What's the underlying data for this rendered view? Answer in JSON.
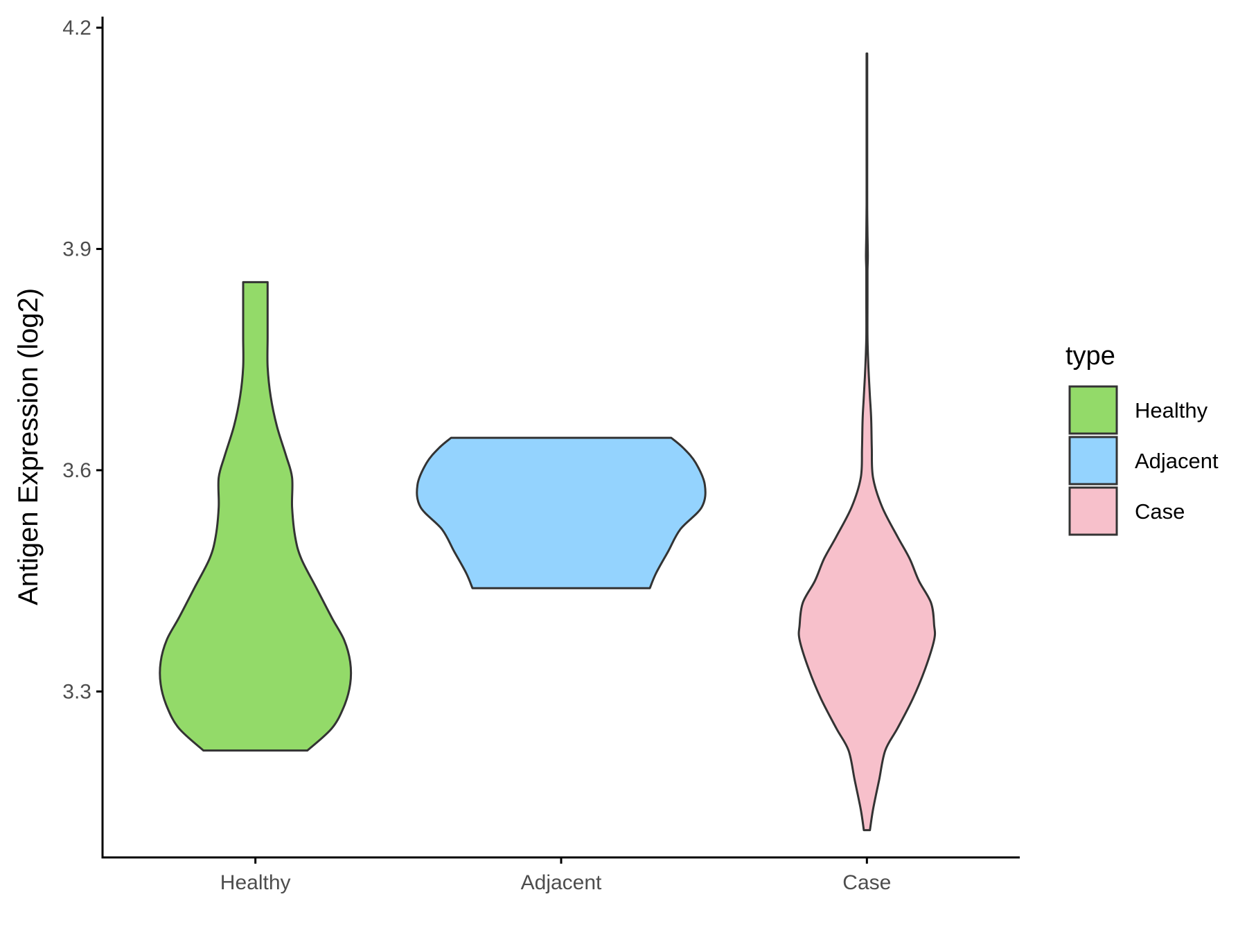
{
  "chart_data": {
    "type": "violin",
    "title": "",
    "xlabel": "",
    "ylabel": "Antigen Expression (log2)",
    "categories": [
      "Healthy",
      "Adjacent",
      "Case"
    ],
    "ylim": [
      3.075,
      4.215
    ],
    "yticks": [
      3.3,
      3.6,
      3.9,
      4.2
    ],
    "ytick_labels": [
      "3.3",
      "3.6",
      "3.9",
      "4.2"
    ],
    "grid": false,
    "legend": {
      "title": "type",
      "position": "right",
      "items": [
        {
          "label": "Healthy",
          "color": "#93DA69"
        },
        {
          "label": "Adjacent",
          "color": "#94D3FE"
        },
        {
          "label": "Case",
          "color": "#F7C0CB"
        }
      ]
    },
    "outline_color": "#333333",
    "series": [
      {
        "name": "Healthy",
        "color": "#93DA69",
        "range": [
          3.22,
          3.855
        ],
        "density": [
          [
            3.22,
            0.17
          ],
          [
            3.25,
            0.25
          ],
          [
            3.28,
            0.29
          ],
          [
            3.31,
            0.31
          ],
          [
            3.34,
            0.31
          ],
          [
            3.37,
            0.29
          ],
          [
            3.4,
            0.25
          ],
          [
            3.44,
            0.2
          ],
          [
            3.48,
            0.15
          ],
          [
            3.51,
            0.13
          ],
          [
            3.55,
            0.12
          ],
          [
            3.59,
            0.12
          ],
          [
            3.62,
            0.1
          ],
          [
            3.66,
            0.07
          ],
          [
            3.7,
            0.05
          ],
          [
            3.74,
            0.04
          ],
          [
            3.78,
            0.04
          ],
          [
            3.82,
            0.04
          ],
          [
            3.855,
            0.04
          ]
        ]
      },
      {
        "name": "Adjacent",
        "color": "#94D3FE",
        "range": [
          3.44,
          3.644
        ],
        "density": [
          [
            3.44,
            0.29
          ],
          [
            3.46,
            0.31
          ],
          [
            3.49,
            0.35
          ],
          [
            3.52,
            0.39
          ],
          [
            3.55,
            0.46
          ],
          [
            3.58,
            0.47
          ],
          [
            3.61,
            0.44
          ],
          [
            3.63,
            0.4
          ],
          [
            3.644,
            0.36
          ]
        ]
      },
      {
        "name": "Case",
        "color": "#F7C0CB",
        "range": [
          3.112,
          4.165
        ],
        "density": [
          [
            3.112,
            0.01
          ],
          [
            3.14,
            0.02
          ],
          [
            3.18,
            0.04
          ],
          [
            3.22,
            0.06
          ],
          [
            3.25,
            0.1
          ],
          [
            3.29,
            0.15
          ],
          [
            3.33,
            0.19
          ],
          [
            3.37,
            0.22
          ],
          [
            3.39,
            0.22
          ],
          [
            3.42,
            0.21
          ],
          [
            3.45,
            0.17
          ],
          [
            3.48,
            0.14
          ],
          [
            3.51,
            0.1
          ],
          [
            3.55,
            0.05
          ],
          [
            3.59,
            0.02
          ],
          [
            3.63,
            0.016
          ],
          [
            3.67,
            0.014
          ],
          [
            3.7,
            0.01
          ],
          [
            3.74,
            0.005
          ],
          [
            3.78,
            0.002
          ],
          [
            3.83,
            0.002
          ],
          [
            3.87,
            0.002
          ],
          [
            3.89,
            0.003
          ],
          [
            3.92,
            0.002
          ],
          [
            3.96,
            0.001
          ],
          [
            4.02,
            0.001
          ],
          [
            4.08,
            0.001
          ],
          [
            4.13,
            0.001
          ],
          [
            4.165,
            0.001
          ]
        ]
      }
    ]
  }
}
